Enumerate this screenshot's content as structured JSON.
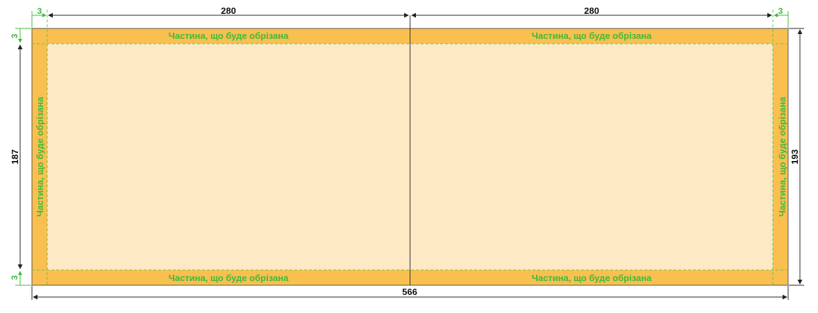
{
  "colors": {
    "bleed": "#f9bf4f",
    "safe": "#fde9c3",
    "trim_text": "#3dbb3d",
    "dim": "#222222"
  },
  "trim_label": "Частина, що буде обрізана",
  "dimensions": {
    "left_bleed": "3",
    "right_bleed": "3",
    "top_bleed": "3",
    "bottom_bleed": "3",
    "panel_left_width": "280",
    "panel_right_width": "280",
    "total_width": "566",
    "inner_height": "187",
    "total_height": "193"
  }
}
